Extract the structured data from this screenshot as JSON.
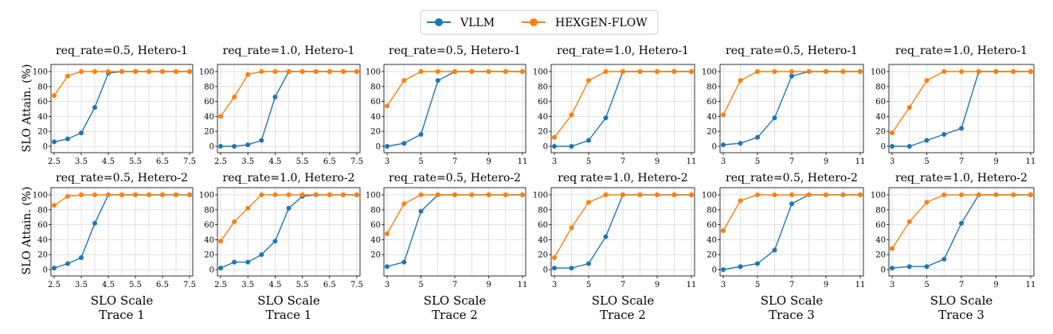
{
  "legend": {
    "entries": [
      {
        "name": "VLLM",
        "color": "#1f77b4"
      },
      {
        "name": "HEXGEN-FLOW",
        "color": "#ff7f0e"
      }
    ]
  },
  "ylabel": "SLO Attain. (%)",
  "xlabel": "SLO Scale",
  "chart_data": [
    {
      "type": "line",
      "title": "req_rate=0.5, Hetero-1",
      "trace": "Trace 1",
      "x": [
        2.5,
        3,
        3.5,
        4,
        4.5,
        5,
        5.5,
        6,
        6.5,
        7,
        7.5
      ],
      "xticks": [
        2.5,
        3.5,
        4.5,
        5.5,
        6.5,
        7.5
      ],
      "xlim": [
        2.5,
        7.5
      ],
      "ylim": [
        0,
        100
      ],
      "yticks": [
        0,
        20,
        40,
        60,
        80,
        100
      ],
      "show_yticklabels": true,
      "series": [
        {
          "name": "VLLM",
          "values": [
            6,
            10,
            18,
            52,
            98,
            100,
            100,
            100,
            100,
            100,
            100
          ]
        },
        {
          "name": "HEXGEN-FLOW",
          "values": [
            68,
            94,
            100,
            100,
            100,
            100,
            100,
            100,
            100,
            100,
            100
          ]
        }
      ]
    },
    {
      "type": "line",
      "title": "req_rate=1.0, Hetero-1",
      "trace": "Trace 1",
      "x": [
        2.5,
        3,
        3.5,
        4,
        4.5,
        5,
        5.5,
        6,
        6.5,
        7,
        7.5
      ],
      "xticks": [
        2.5,
        3.5,
        4.5,
        5.5,
        6.5,
        7.5
      ],
      "xlim": [
        2.5,
        7.5
      ],
      "ylim": [
        0,
        100
      ],
      "yticks": [
        0,
        20,
        40,
        60,
        80,
        100
      ],
      "show_yticklabels": true,
      "series": [
        {
          "name": "VLLM",
          "values": [
            0,
            0,
            2,
            8,
            66,
            100,
            100,
            100,
            100,
            100,
            100
          ]
        },
        {
          "name": "HEXGEN-FLOW",
          "values": [
            40,
            66,
            96,
            100,
            100,
            100,
            100,
            100,
            100,
            100,
            100
          ]
        }
      ]
    },
    {
      "type": "line",
      "title": "req_rate=0.5, Hetero-1",
      "trace": "Trace 2",
      "x": [
        3,
        4,
        5,
        6,
        7,
        8,
        9,
        10,
        11
      ],
      "xticks": [
        3,
        5,
        7,
        9,
        11
      ],
      "xlim": [
        3,
        11
      ],
      "ylim": [
        0,
        100
      ],
      "yticks": [
        0,
        20,
        40,
        60,
        80,
        100
      ],
      "show_yticklabels": true,
      "series": [
        {
          "name": "VLLM",
          "values": [
            0,
            4,
            16,
            88,
            100,
            100,
            100,
            100,
            100
          ]
        },
        {
          "name": "HEXGEN-FLOW",
          "values": [
            54,
            88,
            100,
            100,
            100,
            100,
            100,
            100,
            100
          ]
        }
      ]
    },
    {
      "type": "line",
      "title": "req_rate=1.0, Hetero-1",
      "trace": "Trace 2",
      "x": [
        3,
        4,
        5,
        6,
        7,
        8,
        9,
        10,
        11
      ],
      "xticks": [
        3,
        5,
        7,
        9,
        11
      ],
      "xlim": [
        3,
        11
      ],
      "ylim": [
        0,
        100
      ],
      "yticks": [
        0,
        20,
        40,
        60,
        80,
        100
      ],
      "show_yticklabels": true,
      "series": [
        {
          "name": "VLLM",
          "values": [
            0,
            0,
            8,
            38,
            100,
            100,
            100,
            100,
            100
          ]
        },
        {
          "name": "HEXGEN-FLOW",
          "values": [
            12,
            42,
            88,
            100,
            100,
            100,
            100,
            100,
            100
          ]
        }
      ]
    },
    {
      "type": "line",
      "title": "req_rate=0.5, Hetero-1",
      "trace": "Trace 3",
      "x": [
        3,
        4,
        5,
        6,
        7,
        8,
        9,
        10,
        11
      ],
      "xticks": [
        3,
        5,
        7,
        9,
        11
      ],
      "xlim": [
        3,
        11
      ],
      "ylim": [
        0,
        100
      ],
      "yticks": [
        0,
        20,
        40,
        60,
        80,
        100
      ],
      "show_yticklabels": true,
      "series": [
        {
          "name": "VLLM",
          "values": [
            2,
            4,
            12,
            38,
            94,
            100,
            100,
            100,
            100
          ]
        },
        {
          "name": "HEXGEN-FLOW",
          "values": [
            42,
            88,
            100,
            100,
            100,
            100,
            100,
            100,
            100
          ]
        }
      ]
    },
    {
      "type": "line",
      "title": "req_rate=1.0, Hetero-1",
      "trace": "Trace 3",
      "x": [
        3,
        4,
        5,
        6,
        7,
        8,
        9,
        10,
        11
      ],
      "xticks": [
        3,
        5,
        7,
        9,
        11
      ],
      "xlim": [
        3,
        11
      ],
      "ylim": [
        0,
        100
      ],
      "yticks": [
        0,
        20,
        40,
        60,
        80,
        100
      ],
      "show_yticklabels": true,
      "series": [
        {
          "name": "VLLM",
          "values": [
            0,
            0,
            8,
            16,
            24,
            100,
            100,
            100,
            100
          ]
        },
        {
          "name": "HEXGEN-FLOW",
          "values": [
            18,
            52,
            88,
            100,
            100,
            100,
            100,
            100,
            100
          ]
        }
      ]
    },
    {
      "type": "line",
      "title": "req_rate=0.5, Hetero-2",
      "trace": "Trace 1",
      "x": [
        2.5,
        3,
        3.5,
        4,
        4.5,
        5,
        5.5,
        6,
        6.5,
        7,
        7.5
      ],
      "xticks": [
        2.5,
        3.5,
        4.5,
        5.5,
        6.5,
        7.5
      ],
      "xlim": [
        2.5,
        7.5
      ],
      "ylim": [
        0,
        100
      ],
      "yticks": [
        0,
        20,
        40,
        60,
        80,
        100
      ],
      "show_yticklabels": true,
      "series": [
        {
          "name": "VLLM",
          "values": [
            2,
            8,
            16,
            62,
            100,
            100,
            100,
            100,
            100,
            100,
            100
          ]
        },
        {
          "name": "HEXGEN-FLOW",
          "values": [
            86,
            98,
            100,
            100,
            100,
            100,
            100,
            100,
            100,
            100,
            100
          ]
        }
      ]
    },
    {
      "type": "line",
      "title": "req_rate=1.0, Hetero-2",
      "trace": "Trace 1",
      "x": [
        2.5,
        3,
        3.5,
        4,
        4.5,
        5,
        5.5,
        6,
        6.5,
        7,
        7.5
      ],
      "xticks": [
        2.5,
        3.5,
        4.5,
        5.5,
        6.5,
        7.5
      ],
      "xlim": [
        2.5,
        7.5
      ],
      "ylim": [
        0,
        100
      ],
      "yticks": [
        0,
        20,
        40,
        60,
        80,
        100
      ],
      "show_yticklabels": true,
      "series": [
        {
          "name": "VLLM",
          "values": [
            2,
            10,
            10,
            20,
            38,
            82,
            98,
            100,
            100,
            100,
            100
          ]
        },
        {
          "name": "HEXGEN-FLOW",
          "values": [
            38,
            64,
            82,
            100,
            100,
            100,
            100,
            100,
            100,
            100,
            100
          ]
        }
      ]
    },
    {
      "type": "line",
      "title": "req_rate=0.5, Hetero-2",
      "trace": "Trace 2",
      "x": [
        3,
        4,
        5,
        6,
        7,
        8,
        9,
        10,
        11
      ],
      "xticks": [
        3,
        5,
        7,
        9,
        11
      ],
      "xlim": [
        3,
        11
      ],
      "ylim": [
        0,
        100
      ],
      "yticks": [
        20,
        40,
        60,
        80,
        100
      ],
      "show_yticklabels": true,
      "series": [
        {
          "name": "VLLM",
          "values": [
            4,
            10,
            78,
            100,
            100,
            100,
            100,
            100,
            100
          ]
        },
        {
          "name": "HEXGEN-FLOW",
          "values": [
            48,
            88,
            100,
            100,
            100,
            100,
            100,
            100,
            100
          ]
        }
      ]
    },
    {
      "type": "line",
      "title": "req rate=1.0, Hetero-2",
      "trace": "Trace 2",
      "x": [
        3,
        4,
        5,
        6,
        7,
        8,
        9,
        10,
        11
      ],
      "xticks": [
        3,
        5,
        7,
        9,
        11
      ],
      "xlim": [
        3,
        11
      ],
      "ylim": [
        0,
        100
      ],
      "yticks": [
        0,
        20,
        40,
        60,
        80,
        100
      ],
      "show_yticklabels": true,
      "series": [
        {
          "name": "VLLM",
          "values": [
            2,
            2,
            8,
            44,
            100,
            100,
            100,
            100,
            100
          ]
        },
        {
          "name": "HEXGEN-FLOW",
          "values": [
            16,
            56,
            90,
            100,
            100,
            100,
            100,
            100,
            100
          ]
        }
      ]
    },
    {
      "type": "line",
      "title": "req_rate=0.5, Hetero-2",
      "trace": "Trace 3",
      "x": [
        3,
        4,
        5,
        6,
        7,
        8,
        9,
        10,
        11
      ],
      "xticks": [
        3,
        5,
        7,
        9,
        11
      ],
      "xlim": [
        3,
        11
      ],
      "ylim": [
        0,
        100
      ],
      "yticks": [
        0,
        20,
        40,
        60,
        80,
        100
      ],
      "show_yticklabels": true,
      "series": [
        {
          "name": "VLLM",
          "values": [
            0,
            4,
            8,
            26,
            88,
            100,
            100,
            100,
            100
          ]
        },
        {
          "name": "HEXGEN-FLOW",
          "values": [
            52,
            92,
            100,
            100,
            100,
            100,
            100,
            100,
            100
          ]
        }
      ]
    },
    {
      "type": "line",
      "title": "req_rate=1.0, Hetero-2",
      "trace": "Trace 3",
      "x": [
        3,
        4,
        5,
        6,
        7,
        8,
        9,
        10,
        11
      ],
      "xticks": [
        3,
        5,
        7,
        9,
        11
      ],
      "xlim": [
        3,
        11
      ],
      "ylim": [
        0,
        100
      ],
      "yticks": [
        0,
        20,
        40,
        60,
        80,
        100
      ],
      "show_yticklabels": true,
      "series": [
        {
          "name": "VLLM",
          "values": [
            2,
            4,
            4,
            14,
            62,
            100,
            100,
            100,
            100
          ]
        },
        {
          "name": "HEXGEN-FLOW",
          "values": [
            28,
            64,
            90,
            100,
            100,
            100,
            100,
            100,
            100
          ]
        }
      ]
    }
  ]
}
